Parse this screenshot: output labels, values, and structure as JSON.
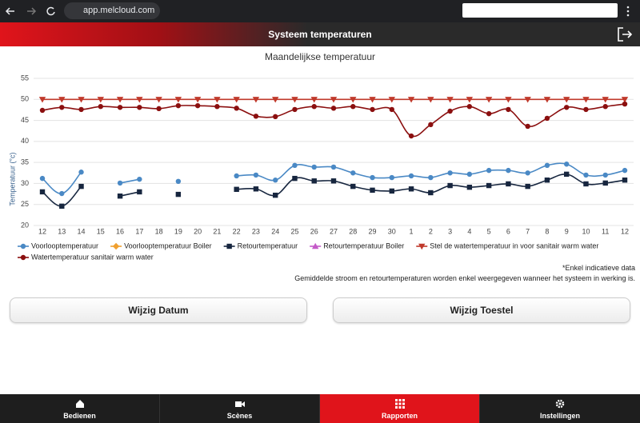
{
  "browser": {
    "url": "app.melcloud.com"
  },
  "header": {
    "title": "Systeem temperaturen"
  },
  "chart_data": {
    "type": "line",
    "title": "Maandelijkse temperatuur",
    "y_label": "Temperatuur (°c)",
    "categories": [
      "12",
      "13",
      "14",
      "15",
      "16",
      "17",
      "18",
      "19",
      "20",
      "21",
      "22",
      "23",
      "24",
      "25",
      "26",
      "27",
      "28",
      "29",
      "30",
      "1",
      "2",
      "3",
      "4",
      "5",
      "6",
      "7",
      "8",
      "9",
      "10",
      "11",
      "12"
    ],
    "ylim": [
      20,
      55
    ],
    "yticks": [
      20,
      25,
      30,
      35,
      40,
      45,
      50,
      55
    ],
    "grid": true,
    "legend": "bottom",
    "series": [
      {
        "name": "Voorlooptemperatuur",
        "color": "#4a89c5",
        "marker": "circle",
        "values": [
          31.2,
          27.6,
          32.7,
          null,
          30.1,
          31.0,
          null,
          30.5,
          null,
          null,
          31.8,
          32.0,
          30.8,
          34.3,
          33.9,
          33.9,
          32.5,
          31.4,
          31.4,
          31.8,
          31.4,
          32.5,
          32.2,
          33.1,
          33.1,
          32.5,
          34.3,
          34.6,
          32.0,
          32.0,
          33.1
        ]
      },
      {
        "name": "Voorlooptemperatuur Boiler",
        "color": "#f0a030",
        "marker": "diamond",
        "values": [
          null,
          null,
          null,
          null,
          null,
          null,
          null,
          null,
          null,
          null,
          null,
          null,
          null,
          null,
          null,
          null,
          null,
          null,
          null,
          null,
          null,
          null,
          null,
          null,
          null,
          null,
          null,
          null,
          null,
          null,
          null
        ]
      },
      {
        "name": "Retourtemperatuur",
        "color": "#17263f",
        "marker": "square",
        "values": [
          28.0,
          24.6,
          29.3,
          null,
          27.0,
          28.0,
          null,
          27.4,
          null,
          null,
          28.6,
          28.7,
          27.2,
          31.2,
          30.6,
          30.6,
          29.3,
          28.4,
          28.2,
          28.7,
          27.8,
          29.5,
          29.1,
          29.5,
          29.9,
          29.3,
          30.8,
          32.2,
          29.9,
          30.1,
          30.8
        ]
      },
      {
        "name": "Retourtemperatuur Boiler",
        "color": "#c45ac8",
        "marker": "triangle-up",
        "values": [
          null,
          null,
          null,
          null,
          null,
          null,
          null,
          null,
          null,
          null,
          null,
          null,
          null,
          null,
          null,
          null,
          null,
          null,
          null,
          null,
          null,
          null,
          null,
          null,
          null,
          null,
          null,
          null,
          null,
          null,
          null
        ]
      },
      {
        "name": "Stel de watertemperatuur in voor sanitair warm water",
        "color": "#c0392b",
        "marker": "triangle-down",
        "values": [
          50,
          50,
          50,
          50,
          50,
          50,
          50,
          50,
          50,
          50,
          50,
          50,
          50,
          50,
          50,
          50,
          50,
          50,
          50,
          50,
          50,
          50,
          50,
          50,
          50,
          50,
          50,
          50,
          50,
          50,
          50
        ]
      },
      {
        "name": "Watertemperatuur sanitair warm water",
        "color": "#8b0f0f",
        "marker": "circle",
        "values": [
          47.4,
          48.1,
          47.6,
          48.3,
          48.1,
          48.1,
          47.8,
          48.5,
          48.5,
          48.3,
          47.9,
          46.0,
          45.9,
          47.6,
          48.3,
          47.9,
          48.3,
          47.6,
          47.6,
          41.3,
          44.0,
          47.2,
          48.3,
          46.6,
          47.6,
          43.6,
          45.5,
          48.1,
          47.6,
          48.3,
          48.9
        ]
      }
    ]
  },
  "notes": [
    "*Enkel indicatieve data",
    "Gemiddelde stroom en retourtemperaturen worden enkel weergegeven wanneer het systeem in werking is."
  ],
  "buttons": [
    "Wijzig Datum",
    "Wijzig Toestel"
  ],
  "nav": [
    {
      "label": "Bedienen"
    },
    {
      "label": "Scènes"
    },
    {
      "label": "Rapporten",
      "active": true
    },
    {
      "label": "Instellingen"
    }
  ]
}
